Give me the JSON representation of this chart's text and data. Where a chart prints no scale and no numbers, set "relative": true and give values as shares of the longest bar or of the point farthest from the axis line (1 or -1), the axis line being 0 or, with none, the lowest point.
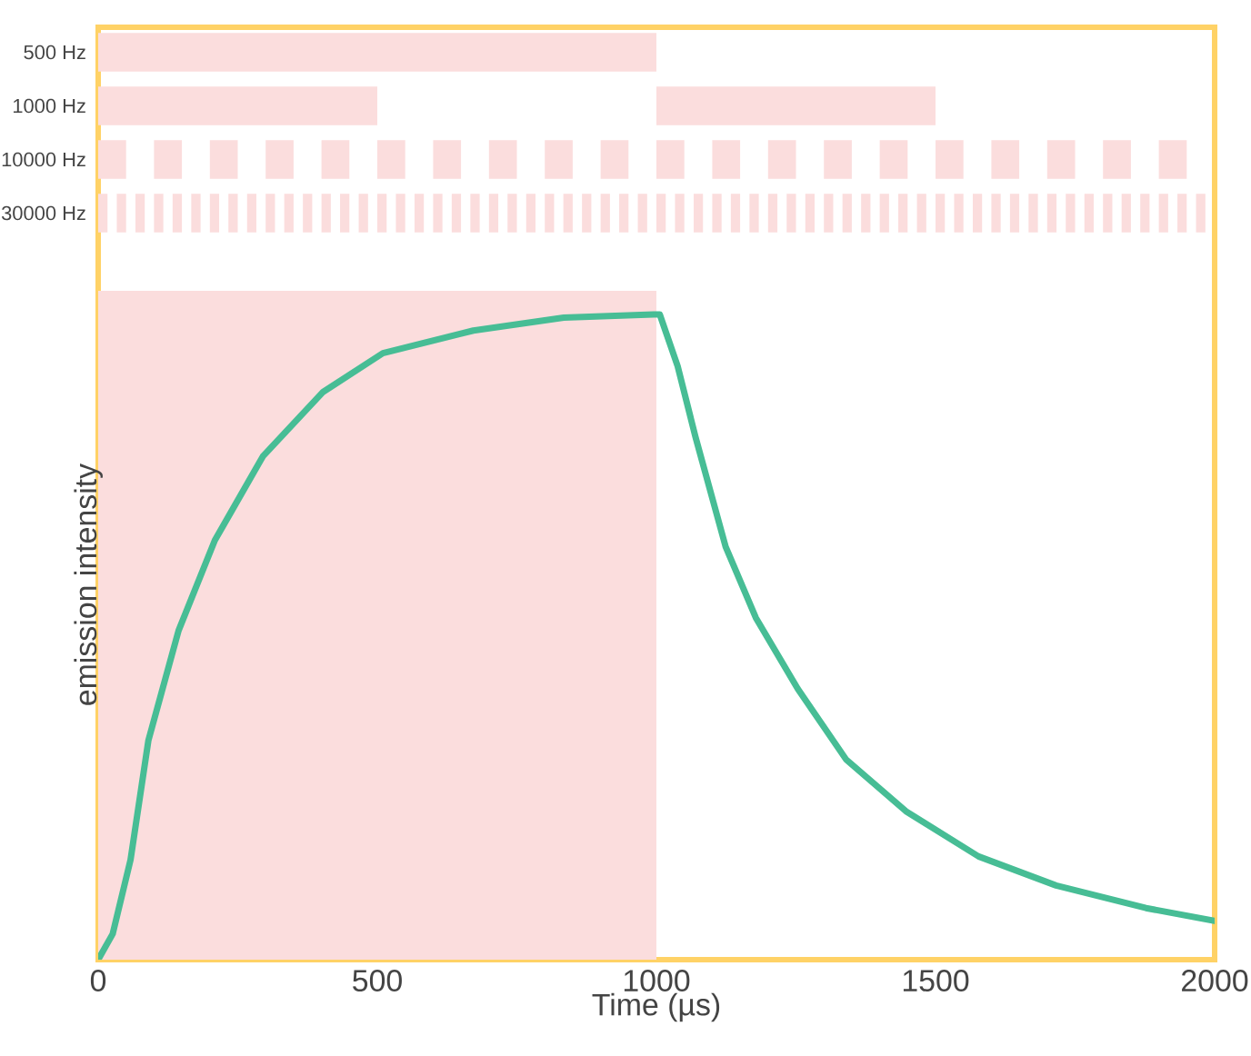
{
  "chart_data": [
    {
      "type": "bar",
      "orientation": "horizontal",
      "categories": [
        "500 Hz",
        "1000 Hz",
        "10000 Hz",
        "30000 Hz"
      ],
      "xlim": [
        0,
        2000
      ],
      "tick_labels": "y",
      "series": [
        {
          "color": "#fbdddd",
          "values": [
            1000,
            500,
            50,
            16.7
          ],
          "base": [
            0,
            0,
            0,
            0
          ]
        },
        {
          "color": "#fbdddd",
          "values": [
            null,
            500,
            50,
            16.7
          ],
          "base": [
            null,
            1000,
            100,
            33.3
          ]
        },
        {
          "color": "#fbdddd",
          "values": [
            null,
            null,
            50,
            16.7
          ],
          "base": [
            null,
            null,
            200,
            66.7
          ]
        },
        {
          "color": "#fbdddd",
          "values": [
            null,
            null,
            50,
            16.7
          ],
          "base": [
            null,
            null,
            300,
            100
          ]
        },
        {
          "color": "#fbdddd",
          "values": [
            null,
            null,
            50,
            16.7
          ],
          "base": [
            null,
            null,
            400,
            133.3
          ]
        },
        {
          "color": "#fbdddd",
          "values": [
            null,
            null,
            50,
            16.7
          ],
          "base": [
            null,
            null,
            500,
            166.7
          ]
        },
        {
          "color": "#fbdddd",
          "values": [
            null,
            null,
            50,
            16.7
          ],
          "base": [
            null,
            null,
            600,
            200
          ]
        },
        {
          "color": "#fbdddd",
          "values": [
            null,
            null,
            50,
            16.7
          ],
          "base": [
            null,
            null,
            700,
            233.3
          ]
        },
        {
          "color": "#fbdddd",
          "values": [
            null,
            null,
            50,
            16.7
          ],
          "base": [
            null,
            null,
            800,
            266.7
          ]
        },
        {
          "color": "#fbdddd",
          "values": [
            null,
            null,
            50,
            16.7
          ],
          "base": [
            null,
            null,
            900,
            300
          ]
        },
        {
          "color": "#fbdddd",
          "values": [
            null,
            null,
            50,
            16.7
          ],
          "base": [
            null,
            null,
            1000,
            333.3
          ]
        },
        {
          "color": "#fbdddd",
          "values": [
            null,
            null,
            50,
            16.7
          ],
          "base": [
            null,
            null,
            1100,
            366.7
          ]
        },
        {
          "color": "#fbdddd",
          "values": [
            null,
            null,
            50,
            16.7
          ],
          "base": [
            null,
            null,
            1200,
            400
          ]
        },
        {
          "color": "#fbdddd",
          "values": [
            null,
            null,
            50,
            16.7
          ],
          "base": [
            null,
            null,
            1300,
            433.3
          ]
        },
        {
          "color": "#fbdddd",
          "values": [
            null,
            null,
            50,
            16.7
          ],
          "base": [
            null,
            null,
            1400,
            466.7
          ]
        },
        {
          "color": "#fbdddd",
          "values": [
            null,
            null,
            50,
            16.7
          ],
          "base": [
            null,
            null,
            1500,
            500
          ]
        },
        {
          "color": "#fbdddd",
          "values": [
            null,
            null,
            50,
            16.7
          ],
          "base": [
            null,
            null,
            1600,
            533.3
          ]
        },
        {
          "color": "#fbdddd",
          "values": [
            null,
            null,
            50,
            16.7
          ],
          "base": [
            null,
            null,
            1700,
            566.7
          ]
        },
        {
          "color": "#fbdddd",
          "values": [
            null,
            null,
            50,
            16.7
          ],
          "base": [
            null,
            null,
            1800,
            600
          ]
        },
        {
          "color": "#fbdddd",
          "values": [
            null,
            null,
            50,
            16.7
          ],
          "base": [
            null,
            null,
            1900,
            633.3
          ]
        },
        {
          "color": "#fbdddd",
          "values": [
            null,
            null,
            null,
            16.7
          ],
          "base": [
            null,
            null,
            null,
            666.7
          ]
        },
        {
          "color": "#fbdddd",
          "values": [
            null,
            null,
            null,
            16.7
          ],
          "base": [
            null,
            null,
            null,
            700
          ]
        },
        {
          "color": "#fbdddd",
          "values": [
            null,
            null,
            null,
            16.7
          ],
          "base": [
            null,
            null,
            null,
            733.3
          ]
        },
        {
          "color": "#fbdddd",
          "values": [
            null,
            null,
            null,
            16.7
          ],
          "base": [
            null,
            null,
            null,
            766.7
          ]
        },
        {
          "color": "#fbdddd",
          "values": [
            null,
            null,
            null,
            16.7
          ],
          "base": [
            null,
            null,
            null,
            800
          ]
        },
        {
          "color": "#fbdddd",
          "values": [
            null,
            null,
            null,
            16.7
          ],
          "base": [
            null,
            null,
            null,
            833.3
          ]
        },
        {
          "color": "#fbdddd",
          "values": [
            null,
            null,
            null,
            16.7
          ],
          "base": [
            null,
            null,
            null,
            866.7
          ]
        },
        {
          "color": "#fbdddd",
          "values": [
            null,
            null,
            null,
            16.7
          ],
          "base": [
            null,
            null,
            null,
            900
          ]
        },
        {
          "color": "#fbdddd",
          "values": [
            null,
            null,
            null,
            16.7
          ],
          "base": [
            null,
            null,
            null,
            933.3
          ]
        },
        {
          "color": "#fbdddd",
          "values": [
            null,
            null,
            null,
            16.7
          ],
          "base": [
            null,
            null,
            null,
            966.7
          ]
        },
        {
          "color": "#fbdddd",
          "values": [
            null,
            null,
            null,
            16.7
          ],
          "base": [
            null,
            null,
            null,
            1000
          ]
        },
        {
          "color": "#fbdddd",
          "values": [
            null,
            null,
            null,
            16.7
          ],
          "base": [
            null,
            null,
            null,
            1033.3
          ]
        },
        {
          "color": "#fbdddd",
          "values": [
            null,
            null,
            null,
            16.7
          ],
          "base": [
            null,
            null,
            null,
            1066.7
          ]
        },
        {
          "color": "#fbdddd",
          "values": [
            null,
            null,
            null,
            16.7
          ],
          "base": [
            null,
            null,
            null,
            1100
          ]
        },
        {
          "color": "#fbdddd",
          "values": [
            null,
            null,
            null,
            16.7
          ],
          "base": [
            null,
            null,
            null,
            1133.3
          ]
        },
        {
          "color": "#fbdddd",
          "values": [
            null,
            null,
            null,
            16.7
          ],
          "base": [
            null,
            null,
            null,
            1166.7
          ]
        },
        {
          "color": "#fbdddd",
          "values": [
            null,
            null,
            null,
            16.7
          ],
          "base": [
            null,
            null,
            null,
            1200
          ]
        },
        {
          "color": "#fbdddd",
          "values": [
            null,
            null,
            null,
            16.7
          ],
          "base": [
            null,
            null,
            null,
            1233.3
          ]
        },
        {
          "color": "#fbdddd",
          "values": [
            null,
            null,
            null,
            16.7
          ],
          "base": [
            null,
            null,
            null,
            1266.7
          ]
        },
        {
          "color": "#fbdddd",
          "values": [
            null,
            null,
            null,
            16.7
          ],
          "base": [
            null,
            null,
            null,
            1300
          ]
        },
        {
          "color": "#fbdddd",
          "values": [
            null,
            null,
            null,
            16.7
          ],
          "base": [
            null,
            null,
            null,
            1333.3
          ]
        },
        {
          "color": "#fbdddd",
          "values": [
            null,
            null,
            null,
            16.7
          ],
          "base": [
            null,
            null,
            null,
            1366.7
          ]
        },
        {
          "color": "#fbdddd",
          "values": [
            null,
            null,
            null,
            16.7
          ],
          "base": [
            null,
            null,
            null,
            1400
          ]
        },
        {
          "color": "#fbdddd",
          "values": [
            null,
            null,
            null,
            16.7
          ],
          "base": [
            null,
            null,
            null,
            1433.3
          ]
        },
        {
          "color": "#fbdddd",
          "values": [
            null,
            null,
            null,
            16.7
          ],
          "base": [
            null,
            null,
            null,
            1466.7
          ]
        },
        {
          "color": "#fbdddd",
          "values": [
            null,
            null,
            null,
            16.7
          ],
          "base": [
            null,
            null,
            null,
            1500
          ]
        },
        {
          "color": "#fbdddd",
          "values": [
            null,
            null,
            null,
            16.7
          ],
          "base": [
            null,
            null,
            null,
            1533.3
          ]
        },
        {
          "color": "#fbdddd",
          "values": [
            null,
            null,
            null,
            16.7
          ],
          "base": [
            null,
            null,
            null,
            1566.7
          ]
        },
        {
          "color": "#fbdddd",
          "values": [
            null,
            null,
            null,
            16.7
          ],
          "base": [
            null,
            null,
            null,
            1600
          ]
        },
        {
          "color": "#fbdddd",
          "values": [
            null,
            null,
            null,
            16.7
          ],
          "base": [
            null,
            null,
            null,
            1633.3
          ]
        },
        {
          "color": "#fbdddd",
          "values": [
            null,
            null,
            null,
            16.7
          ],
          "base": [
            null,
            null,
            null,
            1666.7
          ]
        },
        {
          "color": "#fbdddd",
          "values": [
            null,
            null,
            null,
            16.7
          ],
          "base": [
            null,
            null,
            null,
            1700
          ]
        },
        {
          "color": "#fbdddd",
          "values": [
            null,
            null,
            null,
            16.7
          ],
          "base": [
            null,
            null,
            null,
            1733.3
          ]
        },
        {
          "color": "#fbdddd",
          "values": [
            null,
            null,
            null,
            16.7
          ],
          "base": [
            null,
            null,
            null,
            1766.7
          ]
        },
        {
          "color": "#fbdddd",
          "values": [
            null,
            null,
            null,
            16.7
          ],
          "base": [
            null,
            null,
            null,
            1800
          ]
        },
        {
          "color": "#fbdddd",
          "values": [
            null,
            null,
            null,
            16.7
          ],
          "base": [
            null,
            null,
            null,
            1833.3
          ]
        },
        {
          "color": "#fbdddd",
          "values": [
            null,
            null,
            null,
            16.7
          ],
          "base": [
            null,
            null,
            null,
            1866.7
          ]
        },
        {
          "color": "#fbdddd",
          "values": [
            null,
            null,
            null,
            16.7
          ],
          "base": [
            null,
            null,
            null,
            1900
          ]
        },
        {
          "color": "#fbdddd",
          "values": [
            null,
            null,
            null,
            16.7
          ],
          "base": [
            null,
            null,
            null,
            1933.3
          ]
        },
        {
          "color": "#fbdddd",
          "values": [
            null,
            null,
            null,
            16.7
          ],
          "base": [
            null,
            null,
            null,
            1966.7
          ]
        }
      ]
    },
    {
      "type": "line",
      "xlabel": "Time (µs)",
      "ylabel": "emission intensity",
      "relative": true,
      "x": [
        0,
        26,
        58,
        90,
        144,
        209,
        295,
        403,
        510,
        672,
        834,
        995,
        1006,
        1038,
        1070,
        1124,
        1178,
        1253,
        1340,
        1447,
        1577,
        1716,
        1877,
        2000
      ],
      "values": [
        0,
        0.04,
        0.155,
        0.34,
        0.51,
        0.65,
        0.78,
        0.88,
        0.94,
        0.975,
        0.995,
        1,
        1,
        0.92,
        0.81,
        0.64,
        0.53,
        0.42,
        0.31,
        0.23,
        0.16,
        0.115,
        0.08,
        0.06
      ],
      "color": "#47bd95",
      "xlim": [
        0,
        2000
      ],
      "xticks": [
        0,
        500,
        1000,
        1500,
        2000
      ],
      "bands": [
        {
          "axis": "x",
          "from": 0,
          "to": 1000,
          "color": "#fbdddd"
        }
      ]
    }
  ]
}
